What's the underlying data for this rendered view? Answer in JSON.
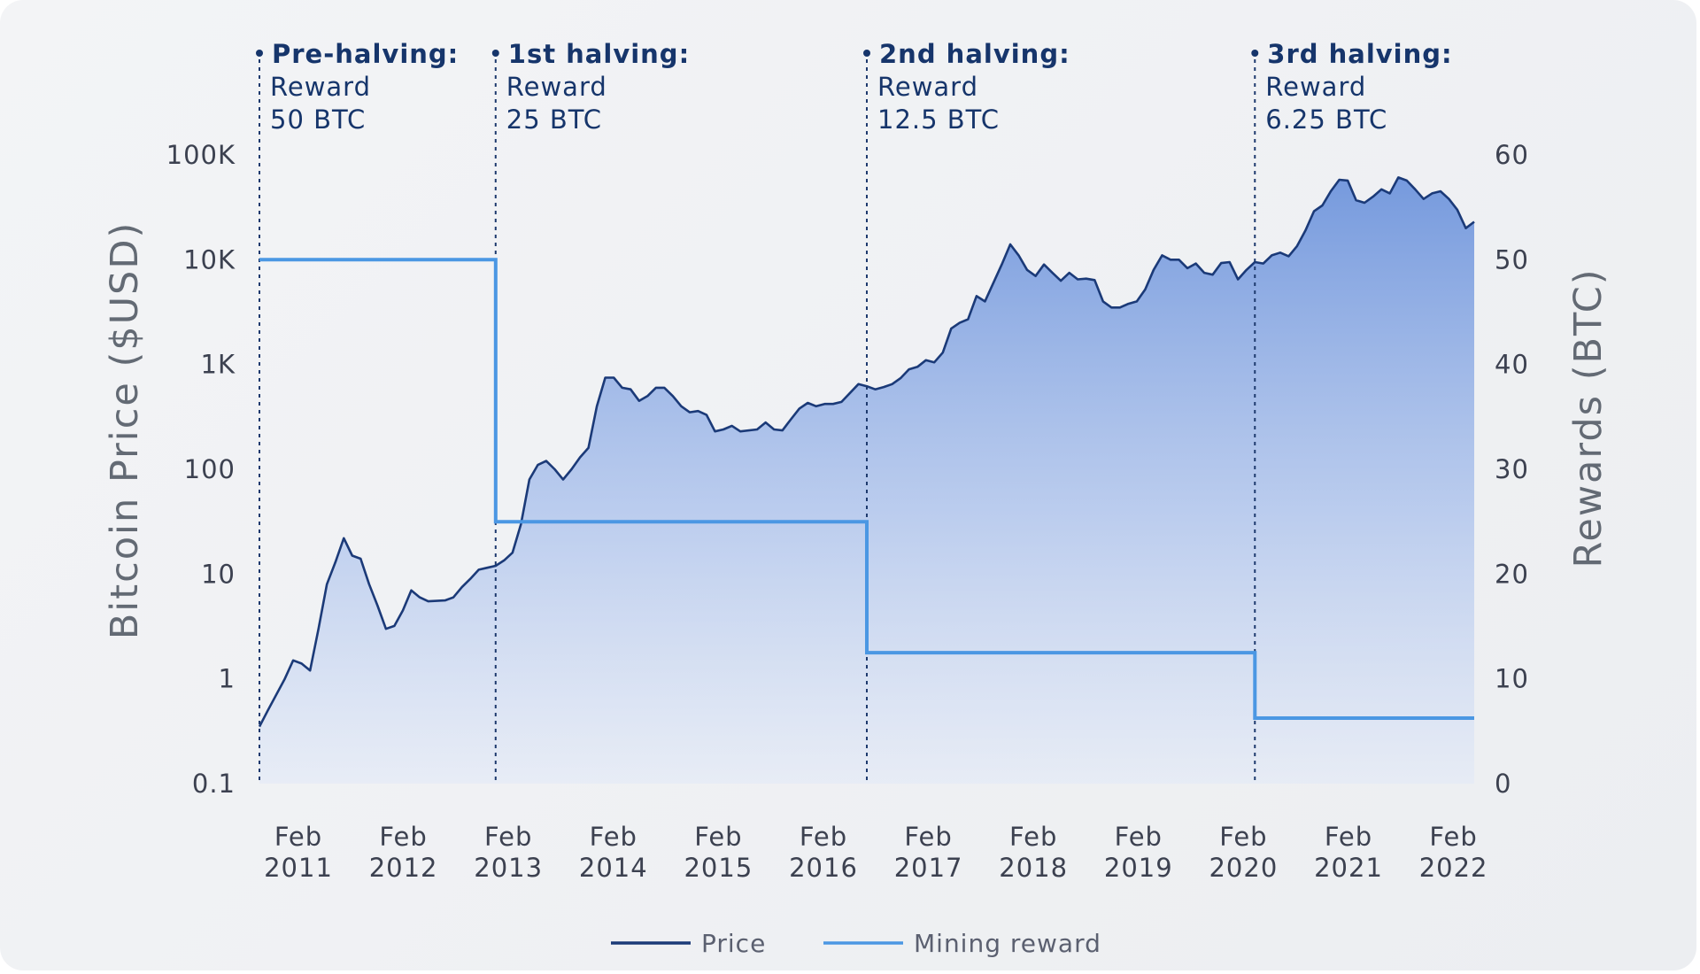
{
  "chart_data": {
    "type": "line",
    "x_axis": {
      "tick_labels": [
        {
          "month": "Feb",
          "year": "2011"
        },
        {
          "month": "Feb",
          "year": "2012"
        },
        {
          "month": "Feb",
          "year": "2013"
        },
        {
          "month": "Feb",
          "year": "2014"
        },
        {
          "month": "Feb",
          "year": "2015"
        },
        {
          "month": "Feb",
          "year": "2016"
        },
        {
          "month": "Feb",
          "year": "2017"
        },
        {
          "month": "Feb",
          "year": "2018"
        },
        {
          "month": "Feb",
          "year": "2019"
        },
        {
          "month": "Feb",
          "year": "2020"
        },
        {
          "month": "Feb",
          "year": "2021"
        },
        {
          "month": "Feb",
          "year": "2022"
        }
      ],
      "range": [
        "2010-07",
        "2022-06"
      ]
    },
    "y_axis_left": {
      "label": "Bitcoin Price ($USD)",
      "scale": "log",
      "tick_labels": [
        "0.1",
        "1",
        "10",
        "100",
        "1K",
        "10K",
        "100K"
      ],
      "tick_values": [
        0.1,
        1,
        10,
        100,
        1000,
        10000,
        100000
      ],
      "range": [
        0.1,
        100000
      ]
    },
    "y_axis_right": {
      "label": "Rewards (BTC)",
      "scale": "linear",
      "tick_labels": [
        "0",
        "10",
        "20",
        "30",
        "40",
        "50",
        "60"
      ],
      "tick_values": [
        0,
        10,
        20,
        30,
        40,
        50,
        60
      ],
      "range": [
        0,
        60
      ]
    },
    "grid": false,
    "series": [
      {
        "name": "Price",
        "axis": "left",
        "color": "#1b3a78",
        "fill": "gradient",
        "points": [
          [
            "2010-07",
            0.35
          ],
          [
            "2010-08",
            0.5
          ],
          [
            "2010-10",
            1.0
          ],
          [
            "2010-11",
            1.5
          ],
          [
            "2010-12",
            1.4
          ],
          [
            "2011-01",
            1.2
          ],
          [
            "2011-02",
            3
          ],
          [
            "2011-03",
            8
          ],
          [
            "2011-04",
            13
          ],
          [
            "2011-05",
            22
          ],
          [
            "2011-06",
            15
          ],
          [
            "2011-07",
            14
          ],
          [
            "2011-08",
            8
          ],
          [
            "2011-09",
            5
          ],
          [
            "2011-10",
            3
          ],
          [
            "2011-11",
            3.2
          ],
          [
            "2011-12",
            4.5
          ],
          [
            "2012-01",
            7
          ],
          [
            "2012-02",
            6
          ],
          [
            "2012-03",
            5.5
          ],
          [
            "2012-05",
            5.6
          ],
          [
            "2012-06",
            6
          ],
          [
            "2012-07",
            7.5
          ],
          [
            "2012-08",
            9
          ],
          [
            "2012-09",
            11
          ],
          [
            "2012-10",
            11.5
          ],
          [
            "2012-11",
            12
          ],
          [
            "2012-12",
            13.5
          ],
          [
            "2013-01",
            16
          ],
          [
            "2013-02",
            30
          ],
          [
            "2013-03",
            80
          ],
          [
            "2013-04",
            110
          ],
          [
            "2013-05",
            120
          ],
          [
            "2013-06",
            100
          ],
          [
            "2013-07",
            80
          ],
          [
            "2013-08",
            100
          ],
          [
            "2013-09",
            130
          ],
          [
            "2013-10",
            160
          ],
          [
            "2013-11",
            400
          ],
          [
            "2013-12",
            750
          ],
          [
            "2014-01",
            750
          ],
          [
            "2014-02",
            600
          ],
          [
            "2014-03",
            580
          ],
          [
            "2014-04",
            450
          ],
          [
            "2014-05",
            500
          ],
          [
            "2014-06",
            600
          ],
          [
            "2014-07",
            600
          ],
          [
            "2014-08",
            500
          ],
          [
            "2014-09",
            400
          ],
          [
            "2014-10",
            350
          ],
          [
            "2014-11",
            360
          ],
          [
            "2014-12",
            330
          ],
          [
            "2015-01",
            230
          ],
          [
            "2015-02",
            240
          ],
          [
            "2015-03",
            260
          ],
          [
            "2015-04",
            230
          ],
          [
            "2015-06",
            240
          ],
          [
            "2015-07",
            280
          ],
          [
            "2015-08",
            240
          ],
          [
            "2015-09",
            235
          ],
          [
            "2015-10",
            300
          ],
          [
            "2015-11",
            380
          ],
          [
            "2015-12",
            430
          ],
          [
            "2016-01",
            400
          ],
          [
            "2016-02",
            420
          ],
          [
            "2016-03",
            420
          ],
          [
            "2016-04",
            440
          ],
          [
            "2016-06",
            650
          ],
          [
            "2016-07",
            620
          ],
          [
            "2016-08",
            580
          ],
          [
            "2016-09",
            610
          ],
          [
            "2016-10",
            650
          ],
          [
            "2016-11",
            740
          ],
          [
            "2016-12",
            900
          ],
          [
            "2017-01",
            950
          ],
          [
            "2017-02",
            1100
          ],
          [
            "2017-03",
            1050
          ],
          [
            "2017-04",
            1300
          ],
          [
            "2017-05",
            2200
          ],
          [
            "2017-06",
            2500
          ],
          [
            "2017-07",
            2700
          ],
          [
            "2017-08",
            4500
          ],
          [
            "2017-09",
            4000
          ],
          [
            "2017-10",
            6000
          ],
          [
            "2017-11",
            9000
          ],
          [
            "2017-12",
            14000
          ],
          [
            "2018-01",
            11000
          ],
          [
            "2018-02",
            8000
          ],
          [
            "2018-03",
            7000
          ],
          [
            "2018-04",
            9000
          ],
          [
            "2018-05",
            7500
          ],
          [
            "2018-06",
            6300
          ],
          [
            "2018-07",
            7500
          ],
          [
            "2018-08",
            6500
          ],
          [
            "2018-09",
            6600
          ],
          [
            "2018-10",
            6400
          ],
          [
            "2018-11",
            4000
          ],
          [
            "2018-12",
            3500
          ],
          [
            "2019-01",
            3500
          ],
          [
            "2019-02",
            3800
          ],
          [
            "2019-03",
            4000
          ],
          [
            "2019-04",
            5200
          ],
          [
            "2019-05",
            8000
          ],
          [
            "2019-06",
            11000
          ],
          [
            "2019-07",
            10000
          ],
          [
            "2019-08",
            10000
          ],
          [
            "2019-09",
            8300
          ],
          [
            "2019-10",
            9200
          ],
          [
            "2019-11",
            7500
          ],
          [
            "2019-12",
            7200
          ],
          [
            "2020-01",
            9300
          ],
          [
            "2020-02",
            9500
          ],
          [
            "2020-03",
            6500
          ],
          [
            "2020-04",
            8000
          ],
          [
            "2020-05",
            9500
          ],
          [
            "2020-06",
            9200
          ],
          [
            "2020-07",
            11000
          ],
          [
            "2020-08",
            11700
          ],
          [
            "2020-09",
            10800
          ],
          [
            "2020-10",
            13500
          ],
          [
            "2020-11",
            19000
          ],
          [
            "2020-12",
            29000
          ],
          [
            "2021-01",
            33000
          ],
          [
            "2021-02",
            45000
          ],
          [
            "2021-03",
            58000
          ],
          [
            "2021-04",
            57000
          ],
          [
            "2021-05",
            37000
          ],
          [
            "2021-06",
            35000
          ],
          [
            "2021-07",
            40000
          ],
          [
            "2021-08",
            47000
          ],
          [
            "2021-09",
            43000
          ],
          [
            "2021-10",
            61000
          ],
          [
            "2021-11",
            57000
          ],
          [
            "2021-12",
            47000
          ],
          [
            "2022-01",
            38000
          ],
          [
            "2022-02",
            43000
          ],
          [
            "2022-03",
            45000
          ],
          [
            "2022-04",
            38000
          ],
          [
            "2022-05",
            30000
          ],
          [
            "2022-06",
            20000
          ],
          [
            "2022-07",
            23000
          ]
        ]
      },
      {
        "name": "Mining reward",
        "axis": "right",
        "color": "#4b97e3",
        "step": true,
        "points": [
          [
            "2010-07",
            50
          ],
          [
            "2012-11",
            50
          ],
          [
            "2012-11",
            25
          ],
          [
            "2016-07",
            25
          ],
          [
            "2016-07",
            12.5
          ],
          [
            "2020-05",
            12.5
          ],
          [
            "2020-05",
            6.25
          ],
          [
            "2022-07",
            6.25
          ]
        ]
      }
    ],
    "annotations": [
      {
        "date": "2010-07",
        "title": "Pre-halving:",
        "line1": "Reward",
        "line2": "50 BTC"
      },
      {
        "date": "2012-11",
        "title": "1st halving:",
        "line1": "Reward",
        "line2": "25 BTC"
      },
      {
        "date": "2016-07",
        "title": "2nd halving:",
        "line1": "Reward",
        "line2": "12.5 BTC"
      },
      {
        "date": "2020-05",
        "title": "3rd halving:",
        "line1": "Reward",
        "line2": "6.25 BTC"
      }
    ],
    "legend": {
      "position": "bottom-center",
      "entries": [
        {
          "label": "Price",
          "color": "#1b3a78"
        },
        {
          "label": "Mining reward",
          "color": "#4b97e3"
        }
      ]
    }
  },
  "colors": {
    "price_line": "#1b3a78",
    "reward_line": "#4b97e3",
    "annotation_text": "#16356b",
    "fill_top": "#6f95dc",
    "fill_bottom": "#e6ecf8"
  }
}
